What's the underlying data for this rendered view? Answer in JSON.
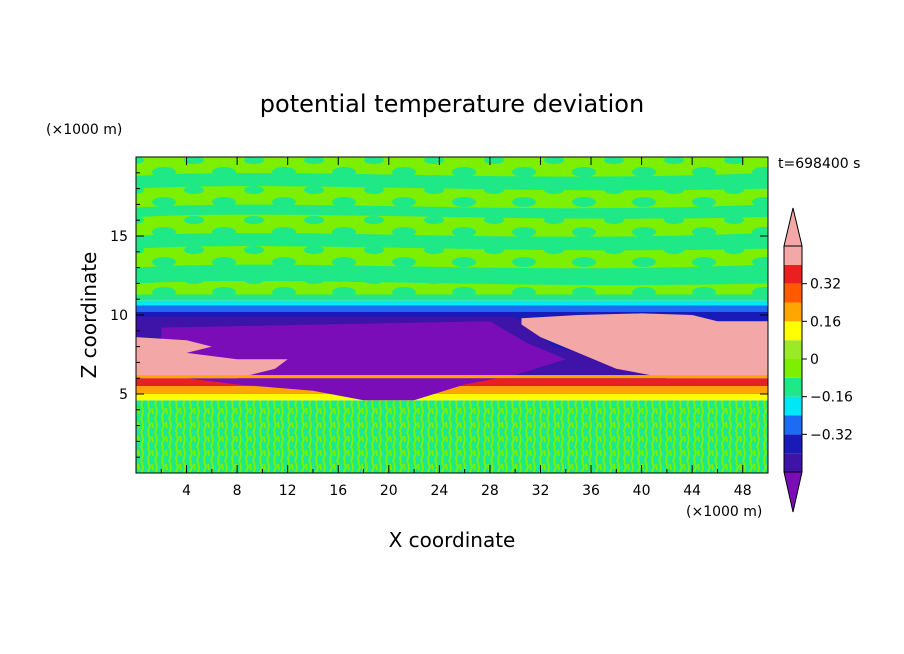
{
  "chart_data": {
    "type": "heatmap",
    "title": "potential temperature deviation",
    "xlabel": "X coordinate",
    "ylabel": "Z coordinate",
    "x_unit": "(×1000 m)",
    "y_unit": "(×1000 m)",
    "time_label": "t=698400 s",
    "xlim": [
      0,
      50
    ],
    "ylim": [
      0,
      20
    ],
    "x_ticks": [
      4,
      8,
      12,
      16,
      20,
      24,
      28,
      32,
      36,
      40,
      44,
      48
    ],
    "y_ticks": [
      5,
      10,
      15
    ],
    "colorbar": {
      "levels": [
        -0.48,
        -0.4,
        -0.32,
        -0.24,
        -0.16,
        -0.08,
        0,
        0.08,
        0.16,
        0.24,
        0.32,
        0.4,
        0.48
      ],
      "labels": [
        "0.32",
        "0.16",
        "0",
        "−0.16",
        "−0.32"
      ],
      "label_values": [
        0.32,
        0.16,
        0,
        -0.16,
        -0.32
      ],
      "colors_low_to_high": [
        "#7B0DB8",
        "#3E13A8",
        "#1A1AB8",
        "#1C6BF2",
        "#00E8F5",
        "#1FE886",
        "#7CF000",
        "#9BEA28",
        "#FFFF00",
        "#FFA500",
        "#FF5A00",
        "#E82020",
        "#F4A7A7"
      ],
      "under_color": "#7B0DB8",
      "over_color": "#F4A7A7"
    },
    "layers": [
      {
        "z_range": [
          0,
          4.6
        ],
        "description": "noisy mix of green and aqua",
        "value": -0.04
      },
      {
        "z_range": [
          4.6,
          5.0
        ],
        "value": 0.18
      },
      {
        "z_range": [
          5.0,
          5.5
        ],
        "value": 0.24
      },
      {
        "z_range": [
          5.5,
          6.0
        ],
        "value": 0.36
      },
      {
        "z_range": [
          6.0,
          10.5
        ],
        "description": "cold purple/indigo pool with warm pink pool to the right and a pink tongue on the left",
        "value": -0.4
      },
      {
        "z_range": [
          10.5,
          11.2
        ],
        "value": -0.2
      },
      {
        "z_range": [
          11.2,
          20
        ],
        "description": "alternating green and light green bands",
        "value": 0.02
      }
    ]
  },
  "colors": {
    "purple": "#7B0DB8",
    "indigo": "#3E13A8",
    "navy": "#1A1AB8",
    "blue": "#1C6BF2",
    "aqua": "#00E8F5",
    "green": "#1FE886",
    "lime": "#7CF000",
    "yellow": "#FFFF00",
    "orange": "#FFA500",
    "red": "#E82020",
    "pink": "#F4A7A7"
  }
}
